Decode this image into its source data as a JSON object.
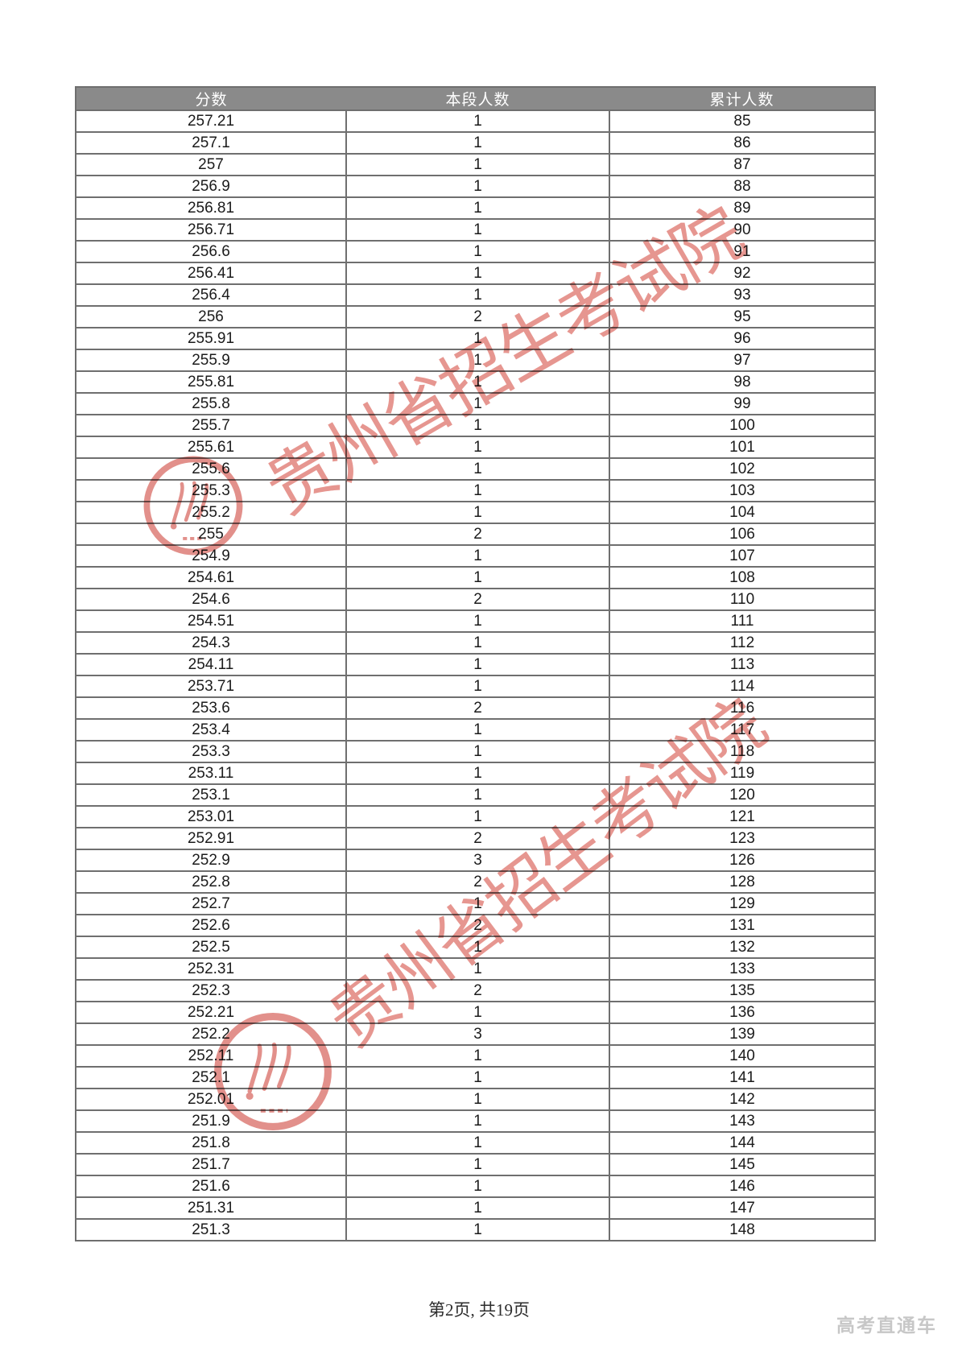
{
  "table": {
    "headers": [
      "分数",
      "本段人数",
      "累计人数"
    ],
    "rows": [
      [
        "257.21",
        "1",
        "85"
      ],
      [
        "257.1",
        "1",
        "86"
      ],
      [
        "257",
        "1",
        "87"
      ],
      [
        "256.9",
        "1",
        "88"
      ],
      [
        "256.81",
        "1",
        "89"
      ],
      [
        "256.71",
        "1",
        "90"
      ],
      [
        "256.6",
        "1",
        "91"
      ],
      [
        "256.41",
        "1",
        "92"
      ],
      [
        "256.4",
        "1",
        "93"
      ],
      [
        "256",
        "2",
        "95"
      ],
      [
        "255.91",
        "1",
        "96"
      ],
      [
        "255.9",
        "1",
        "97"
      ],
      [
        "255.81",
        "1",
        "98"
      ],
      [
        "255.8",
        "1",
        "99"
      ],
      [
        "255.7",
        "1",
        "100"
      ],
      [
        "255.61",
        "1",
        "101"
      ],
      [
        "255.6",
        "1",
        "102"
      ],
      [
        "255.3",
        "1",
        "103"
      ],
      [
        "255.2",
        "1",
        "104"
      ],
      [
        "255",
        "2",
        "106"
      ],
      [
        "254.9",
        "1",
        "107"
      ],
      [
        "254.61",
        "1",
        "108"
      ],
      [
        "254.6",
        "2",
        "110"
      ],
      [
        "254.51",
        "1",
        "111"
      ],
      [
        "254.3",
        "1",
        "112"
      ],
      [
        "254.11",
        "1",
        "113"
      ],
      [
        "253.71",
        "1",
        "114"
      ],
      [
        "253.6",
        "2",
        "116"
      ],
      [
        "253.4",
        "1",
        "117"
      ],
      [
        "253.3",
        "1",
        "118"
      ],
      [
        "253.11",
        "1",
        "119"
      ],
      [
        "253.1",
        "1",
        "120"
      ],
      [
        "253.01",
        "1",
        "121"
      ],
      [
        "252.91",
        "2",
        "123"
      ],
      [
        "252.9",
        "3",
        "126"
      ],
      [
        "252.8",
        "2",
        "128"
      ],
      [
        "252.7",
        "1",
        "129"
      ],
      [
        "252.6",
        "2",
        "131"
      ],
      [
        "252.5",
        "1",
        "132"
      ],
      [
        "252.31",
        "1",
        "133"
      ],
      [
        "252.3",
        "2",
        "135"
      ],
      [
        "252.21",
        "1",
        "136"
      ],
      [
        "252.2",
        "3",
        "139"
      ],
      [
        "252.11",
        "1",
        "140"
      ],
      [
        "252.1",
        "1",
        "141"
      ],
      [
        "252.01",
        "1",
        "142"
      ],
      [
        "251.9",
        "1",
        "143"
      ],
      [
        "251.8",
        "1",
        "144"
      ],
      [
        "251.7",
        "1",
        "145"
      ],
      [
        "251.6",
        "1",
        "146"
      ],
      [
        "251.31",
        "1",
        "147"
      ],
      [
        "251.3",
        "1",
        "148"
      ]
    ]
  },
  "watermark": {
    "text": "贵州省招生考试院",
    "color": "#e2837c"
  },
  "footer": {
    "page_indicator": "第2页, 共19页"
  },
  "brand": {
    "label": "高考直通车",
    "color": "#c7c7c7"
  },
  "colors": {
    "header_bg": "#8a8a8a",
    "header_text": "#ffffff",
    "table_border": "#6f6f6f",
    "body_text": "#1b1b1b"
  }
}
